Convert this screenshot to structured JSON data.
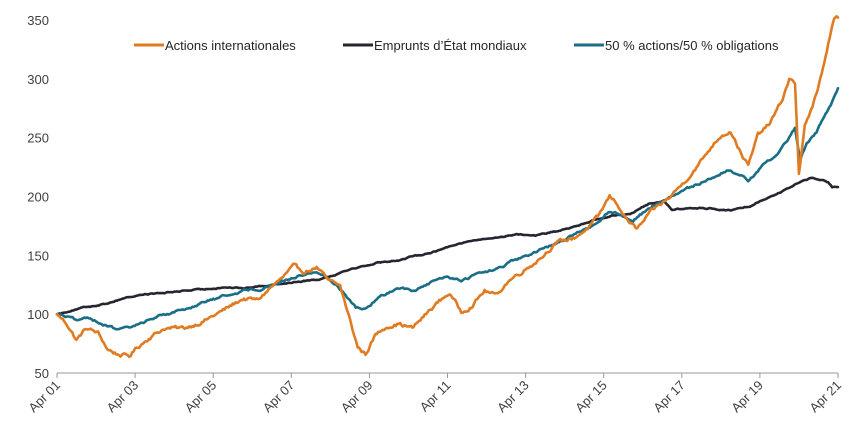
{
  "chart_data": {
    "type": "line",
    "title": "",
    "xlabel": "",
    "ylabel": "",
    "ylim": [
      50,
      350
    ],
    "y_ticks": [
      50,
      100,
      150,
      200,
      250,
      300,
      350
    ],
    "x_tick_labels": [
      "Apr 01",
      "Apr 03",
      "Apr 05",
      "Apr 07",
      "Apr 09",
      "Apr 11",
      "Apr 13",
      "Apr 15",
      "Apr 17",
      "Apr 19",
      "Apr 21"
    ],
    "x_range": [
      2001.25,
      2021.25
    ],
    "legend_position": "top",
    "grid": false,
    "series": [
      {
        "name": "Actions internationales",
        "color": "#E07B22",
        "points": [
          [
            2001.25,
            100
          ],
          [
            2001.5,
            92
          ],
          [
            2001.75,
            78
          ],
          [
            2002.0,
            88
          ],
          [
            2002.3,
            84
          ],
          [
            2002.55,
            70
          ],
          [
            2002.8,
            66
          ],
          [
            2003.1,
            64
          ],
          [
            2003.25,
            70
          ],
          [
            2003.6,
            80
          ],
          [
            2004.0,
            88
          ],
          [
            2004.5,
            88
          ],
          [
            2005.0,
            94
          ],
          [
            2005.5,
            103
          ],
          [
            2006.0,
            113
          ],
          [
            2006.4,
            112
          ],
          [
            2006.7,
            122
          ],
          [
            2007.0,
            130
          ],
          [
            2007.3,
            140
          ],
          [
            2007.6,
            136
          ],
          [
            2007.9,
            140
          ],
          [
            2008.2,
            128
          ],
          [
            2008.5,
            124
          ],
          [
            2008.75,
            95
          ],
          [
            2008.95,
            72
          ],
          [
            2009.15,
            66
          ],
          [
            2009.4,
            82
          ],
          [
            2009.7,
            90
          ],
          [
            2010.0,
            92
          ],
          [
            2010.35,
            88
          ],
          [
            2010.7,
            100
          ],
          [
            2011.0,
            110
          ],
          [
            2011.3,
            118
          ],
          [
            2011.6,
            102
          ],
          [
            2011.9,
            108
          ],
          [
            2012.2,
            120
          ],
          [
            2012.5,
            116
          ],
          [
            2012.8,
            128
          ],
          [
            2013.1,
            135
          ],
          [
            2013.4,
            142
          ],
          [
            2013.7,
            150
          ],
          [
            2014.0,
            160
          ],
          [
            2014.5,
            165
          ],
          [
            2014.8,
            172
          ],
          [
            2015.1,
            182
          ],
          [
            2015.4,
            200
          ],
          [
            2015.6,
            194
          ],
          [
            2015.8,
            182
          ],
          [
            2016.1,
            172
          ],
          [
            2016.5,
            188
          ],
          [
            2016.9,
            198
          ],
          [
            2017.3,
            212
          ],
          [
            2017.7,
            228
          ],
          [
            2018.0,
            242
          ],
          [
            2018.25,
            252
          ],
          [
            2018.5,
            256
          ],
          [
            2018.75,
            238
          ],
          [
            2018.95,
            226
          ],
          [
            2019.2,
            252
          ],
          [
            2019.5,
            262
          ],
          [
            2019.8,
            280
          ],
          [
            2020.0,
            300
          ],
          [
            2020.15,
            296
          ],
          [
            2020.25,
            220
          ],
          [
            2020.4,
            260
          ],
          [
            2020.6,
            275
          ],
          [
            2020.8,
            300
          ],
          [
            2021.0,
            330
          ],
          [
            2021.15,
            350
          ],
          [
            2021.25,
            352
          ]
        ]
      },
      {
        "name": "Emprunts d’État mondiaux",
        "color": "#262630",
        "points": [
          [
            2001.25,
            100
          ],
          [
            2001.6,
            103
          ],
          [
            2002.0,
            106
          ],
          [
            2002.5,
            109
          ],
          [
            2003.0,
            114
          ],
          [
            2003.5,
            117
          ],
          [
            2004.0,
            118
          ],
          [
            2004.5,
            120
          ],
          [
            2005.0,
            121
          ],
          [
            2005.5,
            123
          ],
          [
            2006.0,
            122
          ],
          [
            2006.5,
            124
          ],
          [
            2007.0,
            126
          ],
          [
            2007.5,
            128
          ],
          [
            2008.0,
            130
          ],
          [
            2008.4,
            134
          ],
          [
            2008.7,
            138
          ],
          [
            2009.0,
            140
          ],
          [
            2009.5,
            144
          ],
          [
            2010.0,
            146
          ],
          [
            2010.5,
            150
          ],
          [
            2011.0,
            154
          ],
          [
            2011.5,
            160
          ],
          [
            2012.0,
            163
          ],
          [
            2012.5,
            165
          ],
          [
            2013.0,
            168
          ],
          [
            2013.5,
            167
          ],
          [
            2014.0,
            170
          ],
          [
            2014.5,
            174
          ],
          [
            2015.0,
            180
          ],
          [
            2015.5,
            184
          ],
          [
            2016.0,
            186
          ],
          [
            2016.4,
            194
          ],
          [
            2016.8,
            196
          ],
          [
            2017.0,
            189
          ],
          [
            2017.5,
            190
          ],
          [
            2018.0,
            190
          ],
          [
            2018.5,
            188
          ],
          [
            2019.0,
            192
          ],
          [
            2019.5,
            200
          ],
          [
            2020.0,
            207
          ],
          [
            2020.3,
            213
          ],
          [
            2020.6,
            216
          ],
          [
            2020.9,
            214
          ],
          [
            2021.0,
            212
          ],
          [
            2021.1,
            208
          ],
          [
            2021.25,
            208
          ]
        ]
      },
      {
        "name": "50 % actions/50 % obligations",
        "color": "#1A6E85",
        "points": [
          [
            2001.25,
            100
          ],
          [
            2001.5,
            98
          ],
          [
            2001.8,
            94
          ],
          [
            2002.1,
            97
          ],
          [
            2002.5,
            90
          ],
          [
            2002.8,
            87
          ],
          [
            2003.1,
            88
          ],
          [
            2003.5,
            94
          ],
          [
            2004.0,
            100
          ],
          [
            2004.5,
            104
          ],
          [
            2005.0,
            110
          ],
          [
            2005.5,
            115
          ],
          [
            2006.0,
            120
          ],
          [
            2006.5,
            122
          ],
          [
            2007.0,
            128
          ],
          [
            2007.5,
            133
          ],
          [
            2007.9,
            136
          ],
          [
            2008.3,
            128
          ],
          [
            2008.6,
            118
          ],
          [
            2008.9,
            106
          ],
          [
            2009.1,
            104
          ],
          [
            2009.4,
            112
          ],
          [
            2009.7,
            118
          ],
          [
            2010.0,
            122
          ],
          [
            2010.4,
            120
          ],
          [
            2010.8,
            126
          ],
          [
            2011.2,
            132
          ],
          [
            2011.6,
            128
          ],
          [
            2012.0,
            134
          ],
          [
            2012.5,
            138
          ],
          [
            2013.0,
            146
          ],
          [
            2013.5,
            152
          ],
          [
            2014.0,
            160
          ],
          [
            2014.5,
            168
          ],
          [
            2015.0,
            176
          ],
          [
            2015.4,
            188
          ],
          [
            2015.7,
            184
          ],
          [
            2016.0,
            180
          ],
          [
            2016.5,
            192
          ],
          [
            2017.0,
            200
          ],
          [
            2017.5,
            208
          ],
          [
            2018.0,
            216
          ],
          [
            2018.4,
            222
          ],
          [
            2018.8,
            218
          ],
          [
            2018.95,
            212
          ],
          [
            2019.3,
            226
          ],
          [
            2019.7,
            236
          ],
          [
            2020.0,
            250
          ],
          [
            2020.15,
            258
          ],
          [
            2020.28,
            230
          ],
          [
            2020.45,
            245
          ],
          [
            2020.7,
            255
          ],
          [
            2020.9,
            268
          ],
          [
            2021.1,
            280
          ],
          [
            2021.25,
            292
          ]
        ]
      }
    ]
  }
}
